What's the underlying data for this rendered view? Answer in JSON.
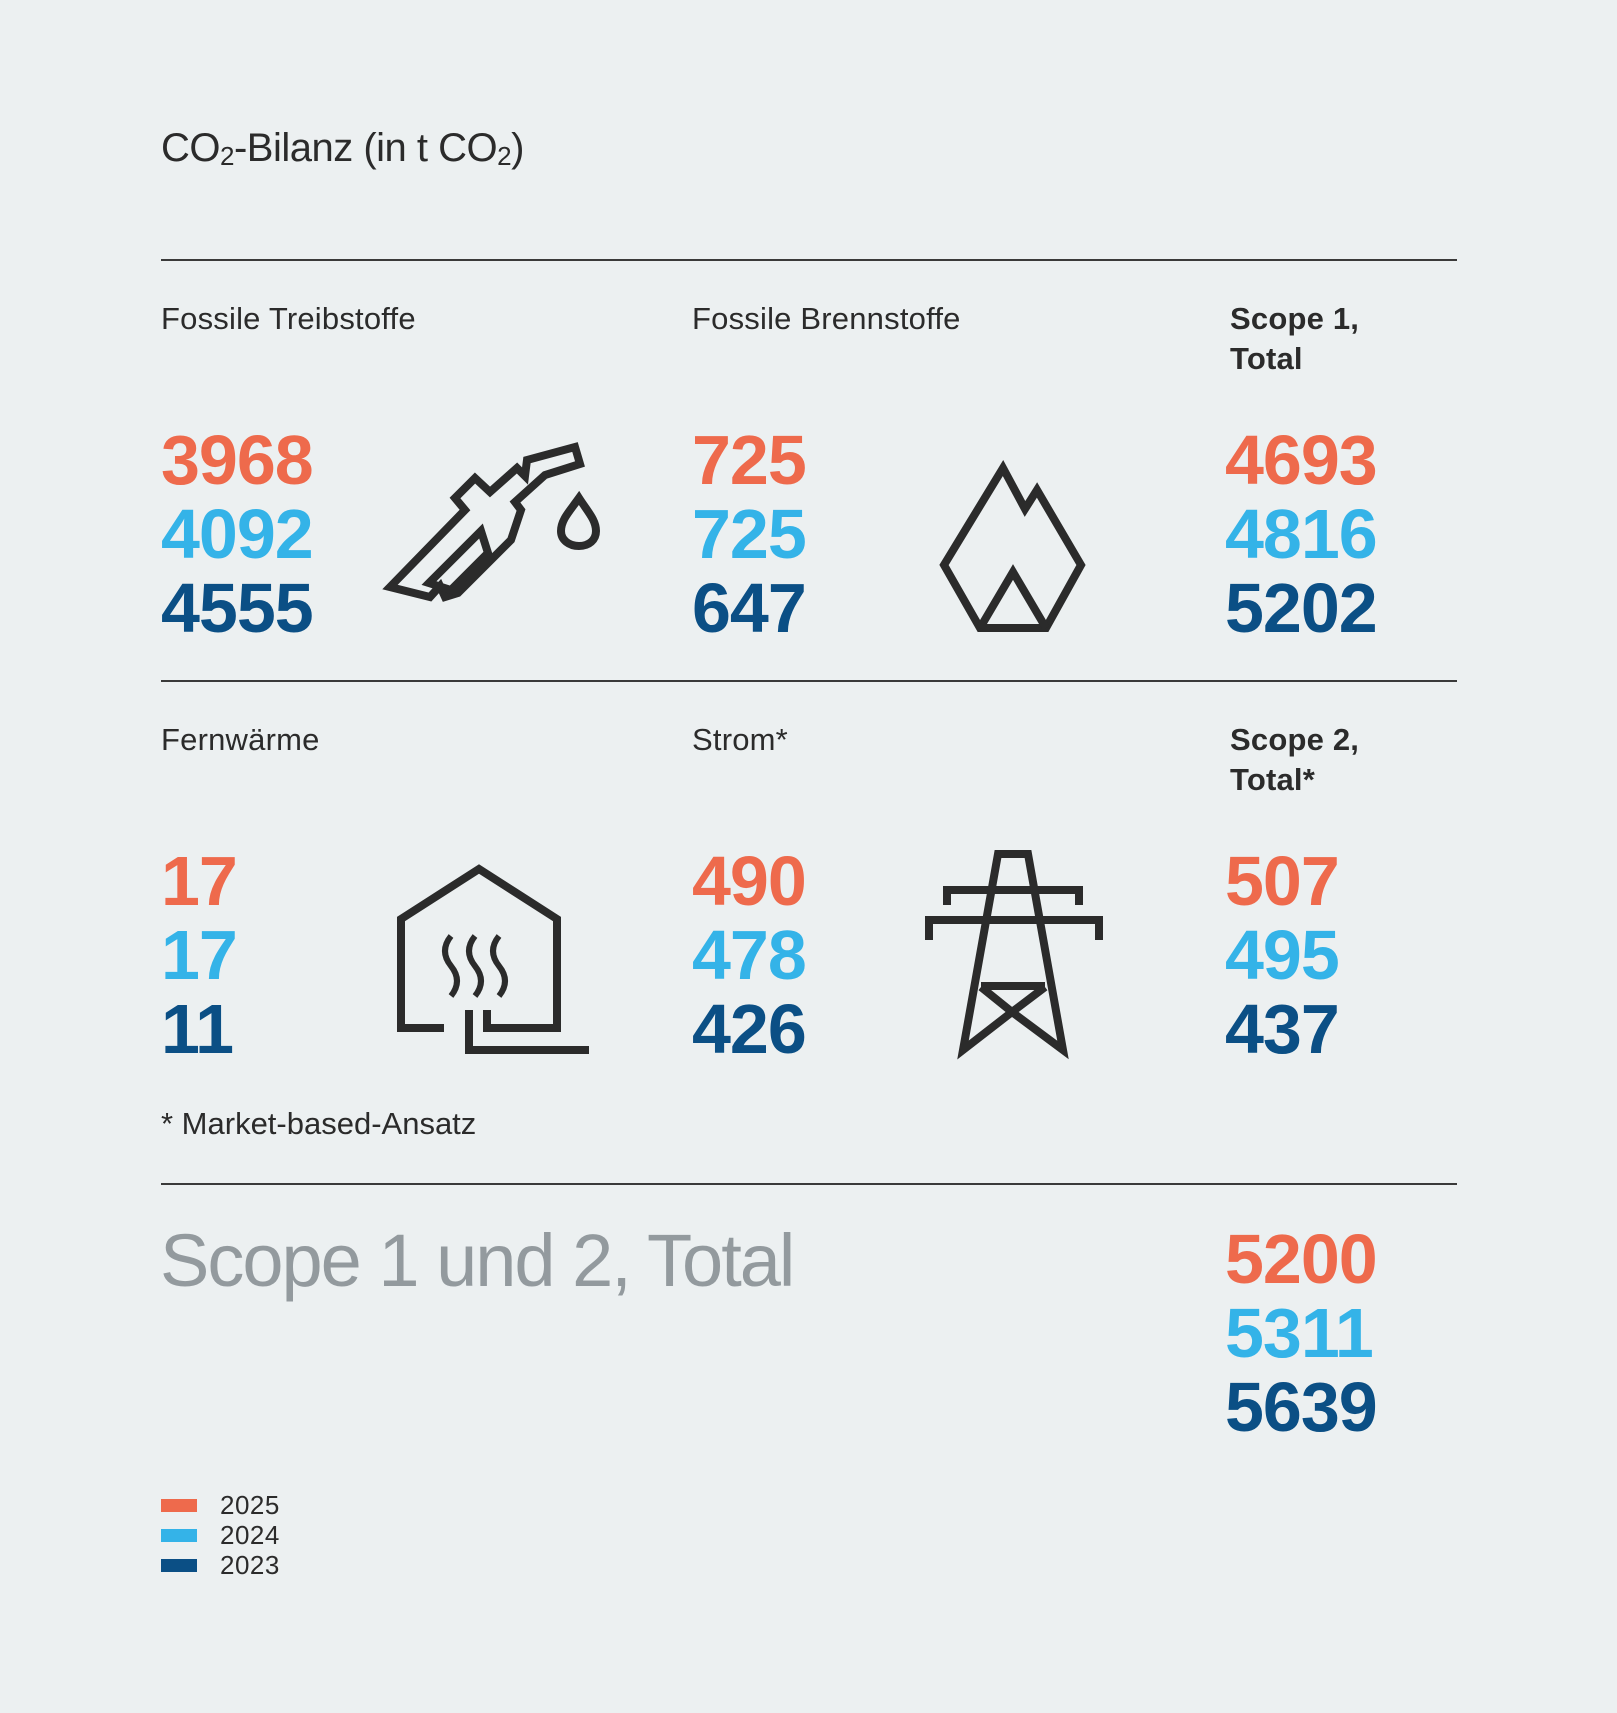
{
  "title": {
    "main": "CO",
    "sub1": "2",
    "mid": "-Bilanz (in t CO",
    "sub2": "2",
    "end": ")"
  },
  "colors": {
    "y2025": "#ee6a4c",
    "y2024": "#34b3e8",
    "y2023": "#0b4f85",
    "grand_label": "#939a9e",
    "icon": "#2b2b2b"
  },
  "cells": {
    "treibstoffe": {
      "label": "Fossile Treibstoffe",
      "icon": "fuel-pump-icon",
      "values": [
        "3968",
        "4092",
        "4555"
      ]
    },
    "brennstoffe": {
      "label": "Fossile Brennstoffe",
      "icon": "flame-icon",
      "values": [
        "725",
        "725",
        "647"
      ]
    },
    "scope1": {
      "label_line1": "Scope 1,",
      "label_line2": "Total",
      "values": [
        "4693",
        "4816",
        "5202"
      ]
    },
    "fernwaerme": {
      "label": "Fernwärme",
      "icon": "district-heating-icon",
      "values": [
        "17",
        "17",
        "11"
      ]
    },
    "strom": {
      "label": "Strom*",
      "icon": "power-pylon-icon",
      "values": [
        "490",
        "478",
        "426"
      ]
    },
    "scope2": {
      "label_line1": "Scope 2,",
      "label_line2": "Total*",
      "values": [
        "507",
        "495",
        "437"
      ]
    }
  },
  "footnote": "* Market-based-Ansatz",
  "grand_total": {
    "label": "Scope 1 und 2, Total",
    "values": [
      "5200",
      "5311",
      "5639"
    ]
  },
  "legend": [
    "2025",
    "2024",
    "2023"
  ],
  "chart_data": {
    "type": "table",
    "title": "CO2-Bilanz (in t CO2)",
    "series": [
      {
        "name": "2025",
        "values": [
          3968,
          725,
          4693,
          17,
          490,
          507,
          5200
        ]
      },
      {
        "name": "2024",
        "values": [
          4092,
          725,
          4816,
          17,
          478,
          495,
          5311
        ]
      },
      {
        "name": "2023",
        "values": [
          4555,
          647,
          5202,
          11,
          426,
          437,
          5639
        ]
      }
    ],
    "categories": [
      "Fossile Treibstoffe",
      "Fossile Brennstoffe",
      "Scope 1, Total",
      "Fernwärme",
      "Strom*",
      "Scope 2, Total*",
      "Scope 1 und 2, Total"
    ],
    "legend_placement": "bottom-left"
  }
}
